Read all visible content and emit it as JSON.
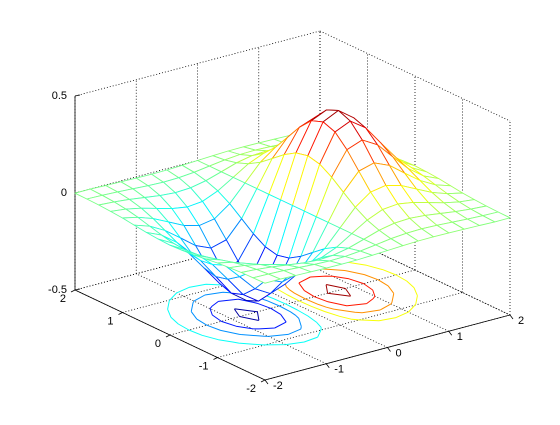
{
  "chart_data": {
    "type": "meshc",
    "xlim": [
      -2,
      2
    ],
    "xticks": [
      -2,
      -1,
      0,
      1,
      2
    ],
    "ylim": [
      -2,
      2
    ],
    "yticks": [
      -2,
      -1,
      0,
      1,
      2
    ],
    "zlim": [
      -0.5,
      0.5
    ],
    "zticks": [
      -0.5,
      0,
      0.5
    ],
    "grid": true,
    "colormap": "jet",
    "contour_levels": [
      -0.4,
      -0.3,
      -0.2,
      -0.1,
      0.1,
      0.2,
      0.3,
      0.4
    ],
    "x": [
      -2,
      -1.75,
      -1.5,
      -1.25,
      -1,
      -0.75,
      -0.5,
      -0.25,
      0,
      0.25,
      0.5,
      0.75,
      1,
      1.25,
      1.5,
      1.75,
      2
    ],
    "y": [
      -2,
      -1.75,
      -1.5,
      -1.25,
      -1,
      -0.75,
      -0.5,
      -0.25,
      0,
      0.25,
      0.5,
      0.75,
      1,
      1.25,
      1.5,
      1.75,
      2
    ],
    "z": [
      [
        -0.001,
        -0.001,
        -0.003,
        -0.005,
        -0.007,
        -0.008,
        -0.007,
        -0.004,
        0,
        0.004,
        0.007,
        0.008,
        0.007,
        0.005,
        0.003,
        0.001,
        0.001
      ],
      [
        -0.002,
        -0.004,
        -0.007,
        -0.012,
        -0.017,
        -0.02,
        -0.018,
        -0.011,
        0,
        0.011,
        0.018,
        0.02,
        0.017,
        0.012,
        0.007,
        0.004,
        0.002
      ],
      [
        -0.004,
        -0.009,
        -0.017,
        -0.028,
        -0.039,
        -0.045,
        -0.041,
        -0.025,
        0,
        0.025,
        0.041,
        0.045,
        0.039,
        0.028,
        0.017,
        0.009,
        0.004
      ],
      [
        -0.008,
        -0.017,
        -0.033,
        -0.055,
        -0.077,
        -0.09,
        -0.082,
        -0.049,
        0,
        0.049,
        0.082,
        0.09,
        0.077,
        0.055,
        0.033,
        0.017,
        0.008
      ],
      [
        -0.013,
        -0.03,
        -0.058,
        -0.096,
        -0.135,
        -0.157,
        -0.143,
        -0.086,
        0,
        0.086,
        0.143,
        0.157,
        0.135,
        0.096,
        0.058,
        0.03,
        0.013
      ],
      [
        -0.021,
        -0.047,
        -0.09,
        -0.149,
        -0.21,
        -0.244,
        -0.222,
        -0.134,
        0,
        0.134,
        0.222,
        0.244,
        0.21,
        0.149,
        0.09,
        0.047,
        0.021
      ],
      [
        -0.029,
        -0.064,
        -0.123,
        -0.204,
        -0.287,
        -0.333,
        -0.303,
        -0.183,
        0,
        0.183,
        0.303,
        0.333,
        0.287,
        0.204,
        0.123,
        0.064,
        0.029
      ],
      [
        -0.034,
        -0.077,
        -0.149,
        -0.246,
        -0.346,
        -0.401,
        -0.366,
        -0.221,
        0,
        0.221,
        0.366,
        0.401,
        0.346,
        0.246,
        0.149,
        0.077,
        0.034
      ],
      [
        -0.037,
        -0.082,
        -0.158,
        -0.262,
        -0.368,
        -0.427,
        -0.389,
        -0.235,
        0,
        0.235,
        0.389,
        0.427,
        0.368,
        0.262,
        0.158,
        0.082,
        0.037
      ],
      [
        -0.034,
        -0.077,
        -0.149,
        -0.246,
        -0.346,
        -0.401,
        -0.366,
        -0.221,
        0,
        0.221,
        0.366,
        0.401,
        0.346,
        0.246,
        0.149,
        0.077,
        0.034
      ],
      [
        -0.029,
        -0.064,
        -0.123,
        -0.204,
        -0.287,
        -0.333,
        -0.303,
        -0.183,
        0,
        0.183,
        0.303,
        0.333,
        0.287,
        0.204,
        0.123,
        0.064,
        0.029
      ],
      [
        -0.021,
        -0.047,
        -0.09,
        -0.149,
        -0.21,
        -0.244,
        -0.222,
        -0.134,
        0,
        0.134,
        0.222,
        0.244,
        0.21,
        0.149,
        0.09,
        0.047,
        0.021
      ],
      [
        -0.013,
        -0.03,
        -0.058,
        -0.096,
        -0.135,
        -0.157,
        -0.143,
        -0.086,
        0,
        0.086,
        0.143,
        0.157,
        0.135,
        0.096,
        0.058,
        0.03,
        0.013
      ],
      [
        -0.008,
        -0.017,
        -0.033,
        -0.055,
        -0.077,
        -0.09,
        -0.082,
        -0.049,
        0,
        0.049,
        0.082,
        0.09,
        0.077,
        0.055,
        0.033,
        0.017,
        0.008
      ],
      [
        -0.004,
        -0.009,
        -0.017,
        -0.028,
        -0.039,
        -0.045,
        -0.041,
        -0.025,
        0,
        0.025,
        0.041,
        0.045,
        0.039,
        0.028,
        0.017,
        0.009,
        0.004
      ],
      [
        -0.002,
        -0.004,
        -0.007,
        -0.012,
        -0.017,
        -0.02,
        -0.018,
        -0.011,
        0,
        0.011,
        0.018,
        0.02,
        0.017,
        0.012,
        0.007,
        0.004,
        0.002
      ],
      [
        -0.001,
        -0.001,
        -0.003,
        -0.005,
        -0.007,
        -0.008,
        -0.007,
        -0.004,
        0,
        0.004,
        0.007,
        0.008,
        0.007,
        0.005,
        0.003,
        0.001,
        0.001
      ]
    ]
  }
}
